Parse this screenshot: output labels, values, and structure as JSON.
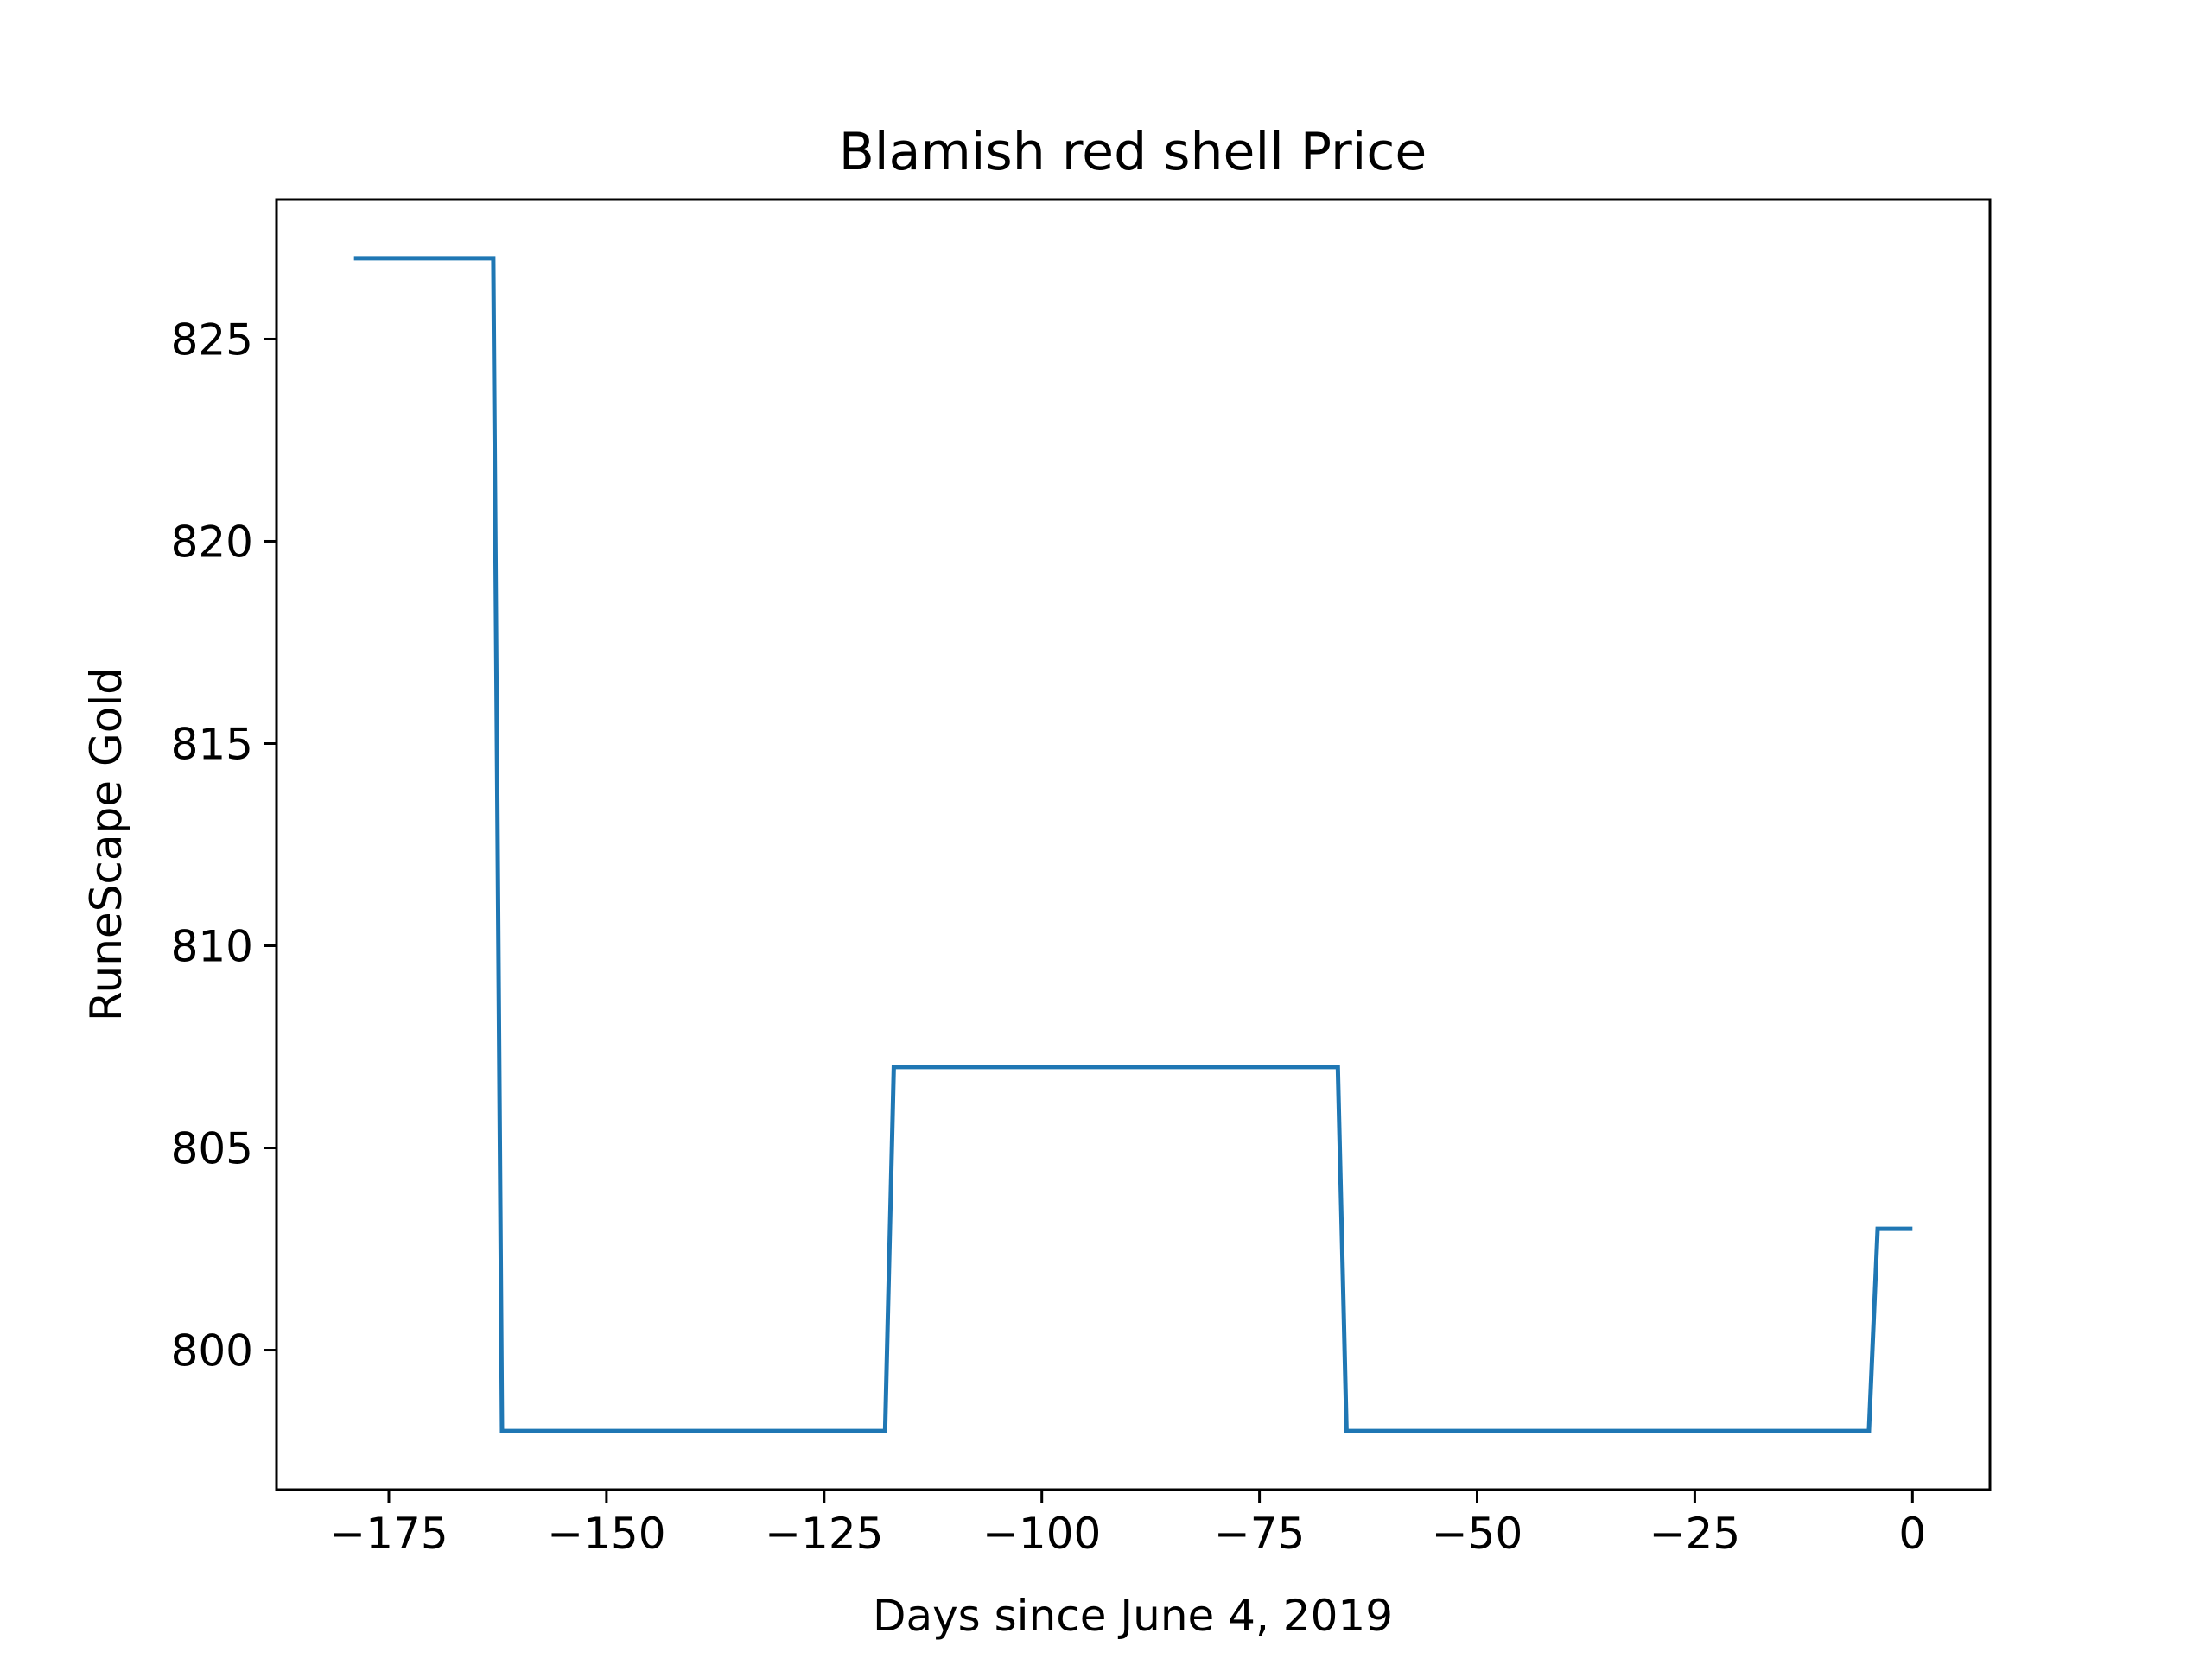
{
  "chart_data": {
    "type": "line",
    "title": "Blamish red shell Price",
    "xlabel": "Days since June 4, 2019",
    "ylabel": "RuneScape Gold",
    "xlim": [
      -187.9,
      8.9
    ],
    "ylim": [
      796.55,
      828.45
    ],
    "x_ticks": [
      -175,
      -150,
      -125,
      -100,
      -75,
      -50,
      -25,
      0
    ],
    "x_tick_labels": [
      "−175",
      "−150",
      "−125",
      "−100",
      "−75",
      "−50",
      "−25",
      "0"
    ],
    "y_ticks": [
      800,
      805,
      810,
      815,
      820,
      825
    ],
    "y_tick_labels": [
      "800",
      "805",
      "810",
      "815",
      "820",
      "825"
    ],
    "grid": false,
    "line_color": "#1f77b4",
    "series": [
      {
        "x": [
          -179,
          -163,
          -162,
          -118,
          -117,
          -66,
          -65,
          -5,
          -4,
          0
        ],
        "y": [
          827,
          827,
          798,
          798,
          807,
          807,
          798,
          798,
          803,
          803
        ]
      }
    ]
  }
}
